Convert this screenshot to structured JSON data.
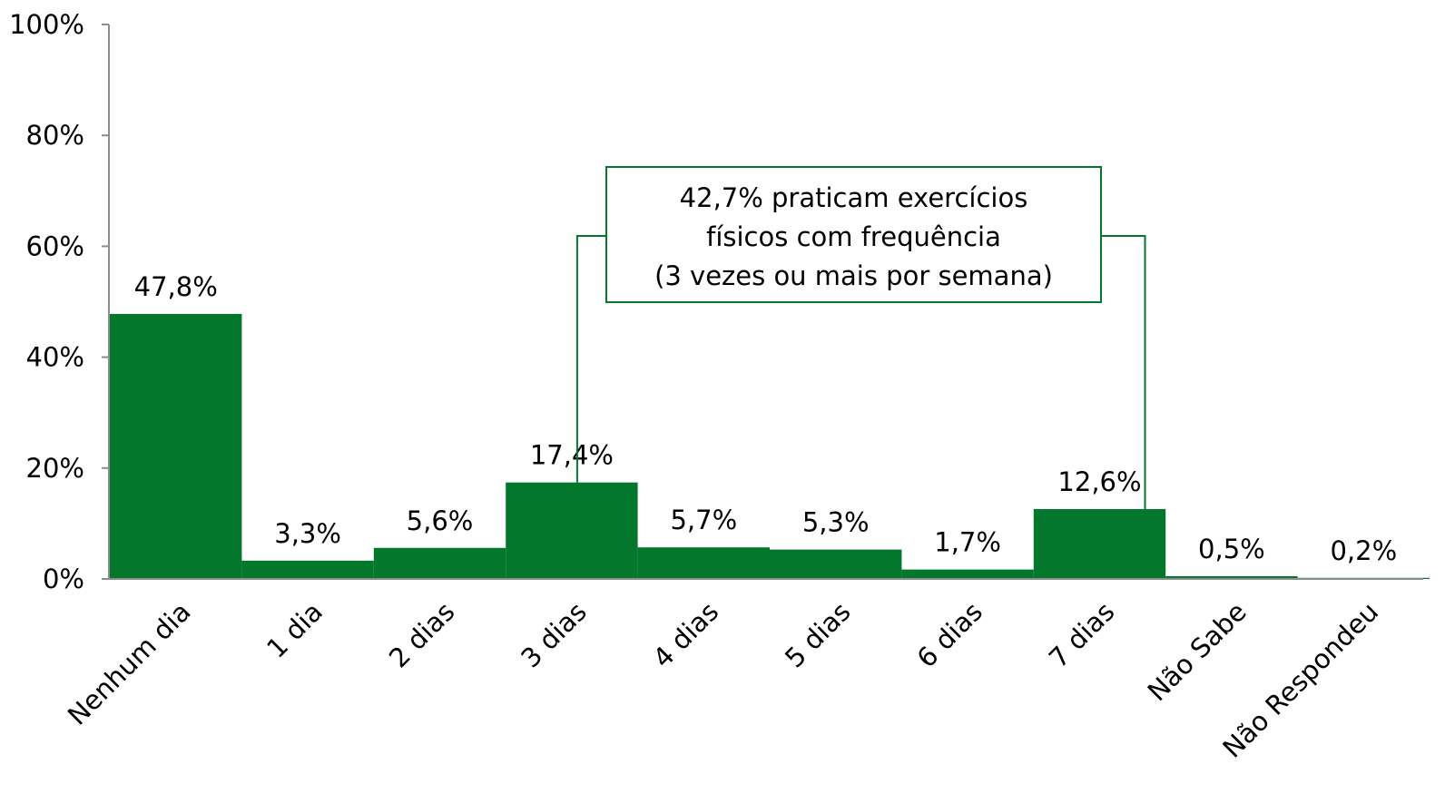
{
  "chart_data": {
    "type": "bar",
    "categories": [
      "Nenhum dia",
      "1 dia",
      "2 dias",
      "3 dias",
      "4 dias",
      "5 dias",
      "6 dias",
      "7 dias",
      "Não Sabe",
      "Não Respondeu"
    ],
    "values": [
      47.8,
      3.3,
      5.6,
      17.4,
      5.7,
      5.3,
      1.7,
      12.6,
      0.5,
      0.2
    ],
    "value_labels": [
      "47,8%",
      "3,3%",
      "5,6%",
      "17,4%",
      "5,7%",
      "5,3%",
      "1,7%",
      "12,6%",
      "0,5%",
      "0,2%"
    ],
    "color": "#03782c",
    "ylim": [
      0,
      100
    ],
    "yticks": [
      {
        "value": 0,
        "label": "0%"
      },
      {
        "value": 20,
        "label": "20%"
      },
      {
        "value": 40,
        "label": "40%"
      },
      {
        "value": 60,
        "label": "60%"
      },
      {
        "value": 80,
        "label": "80%"
      },
      {
        "value": 100,
        "label": "100%"
      }
    ],
    "grid": false,
    "annotation": [
      "42,7% praticam exercícios",
      "físicos com frequência",
      "(3 vezes ou mais por semana)"
    ]
  }
}
